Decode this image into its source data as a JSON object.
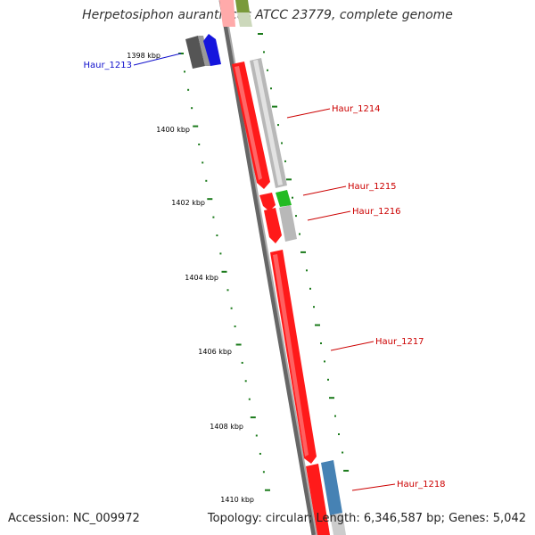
{
  "title": "Herpetosiphon aurantiacus ATCC 23779, complete genome",
  "accession_text": "Accession: NC_009972",
  "summary_text": "Topology: circular; Length: 6,346,587 bp; Genes: 5,042",
  "map": {
    "kbp_ticks": [
      {
        "label": "1398 kbp",
        "kbp": 1398
      },
      {
        "label": "1400 kbp",
        "kbp": 1400
      },
      {
        "label": "1402 kbp",
        "kbp": 1402
      },
      {
        "label": "1404 kbp",
        "kbp": 1404
      },
      {
        "label": "1406 kbp",
        "kbp": 1406
      },
      {
        "label": "1408 kbp",
        "kbp": 1408
      },
      {
        "label": "1410 kbp",
        "kbp": 1410
      }
    ],
    "gene_labels": [
      {
        "name": "Haur_1213",
        "color": "#1010cc"
      },
      {
        "name": "Haur_1214",
        "color": "#cc0000"
      },
      {
        "name": "Haur_1215",
        "color": "#cc0000"
      },
      {
        "name": "Haur_1216",
        "color": "#cc0000"
      },
      {
        "name": "Haur_1217",
        "color": "#cc0000"
      },
      {
        "name": "Haur_1218",
        "color": "#cc0000"
      }
    ],
    "colors": {
      "cds": "#ff1a1a",
      "cds_highlight": "#ff9a9a",
      "backbone": "#8a8a8a",
      "tick": "#1a7a1a",
      "gc_gray": "#b8b8b8",
      "gc_green": "#22bb22",
      "gc_blue": "#4682b4",
      "dark_gray": "#666666",
      "blue_block": "#1515dd",
      "olive": "#7a9a3a"
    }
  }
}
